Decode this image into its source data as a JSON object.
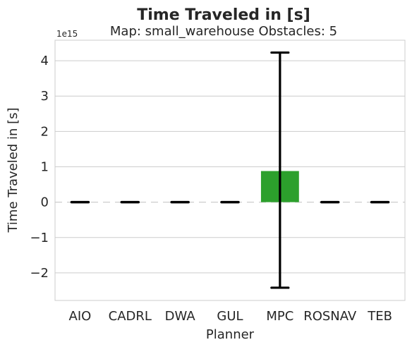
{
  "chart_data": {
    "type": "bar",
    "title": "Time Traveled in [s]",
    "subtitle": "Map: small_warehouse Obstacles: 5",
    "xlabel": "Planner",
    "ylabel": "Time Traveled in [s]",
    "y_offset_label": "1e15",
    "y_scale_factor": 1000000000000000.0,
    "categories": [
      "AIO",
      "CADRL",
      "DWA",
      "GUL",
      "MPC",
      "ROSNAV",
      "TEB"
    ],
    "values": [
      0,
      0,
      0,
      0,
      0.88,
      0,
      0
    ],
    "error_low": [
      0,
      0,
      0,
      0,
      -2.42,
      0,
      0
    ],
    "error_high": [
      0,
      0,
      0,
      0,
      4.23,
      0,
      0
    ],
    "bar_colors": [
      "#1f77b4",
      "#ff7f0e",
      "#2ca02c",
      "#d62728",
      "#2ca02c",
      "#8c564b",
      "#e377c2"
    ],
    "yticks": [
      -2,
      -1,
      0,
      1,
      2,
      3,
      4
    ],
    "ylim": [
      -2.78,
      4.58
    ],
    "grid": true,
    "grid_axis": "y"
  }
}
